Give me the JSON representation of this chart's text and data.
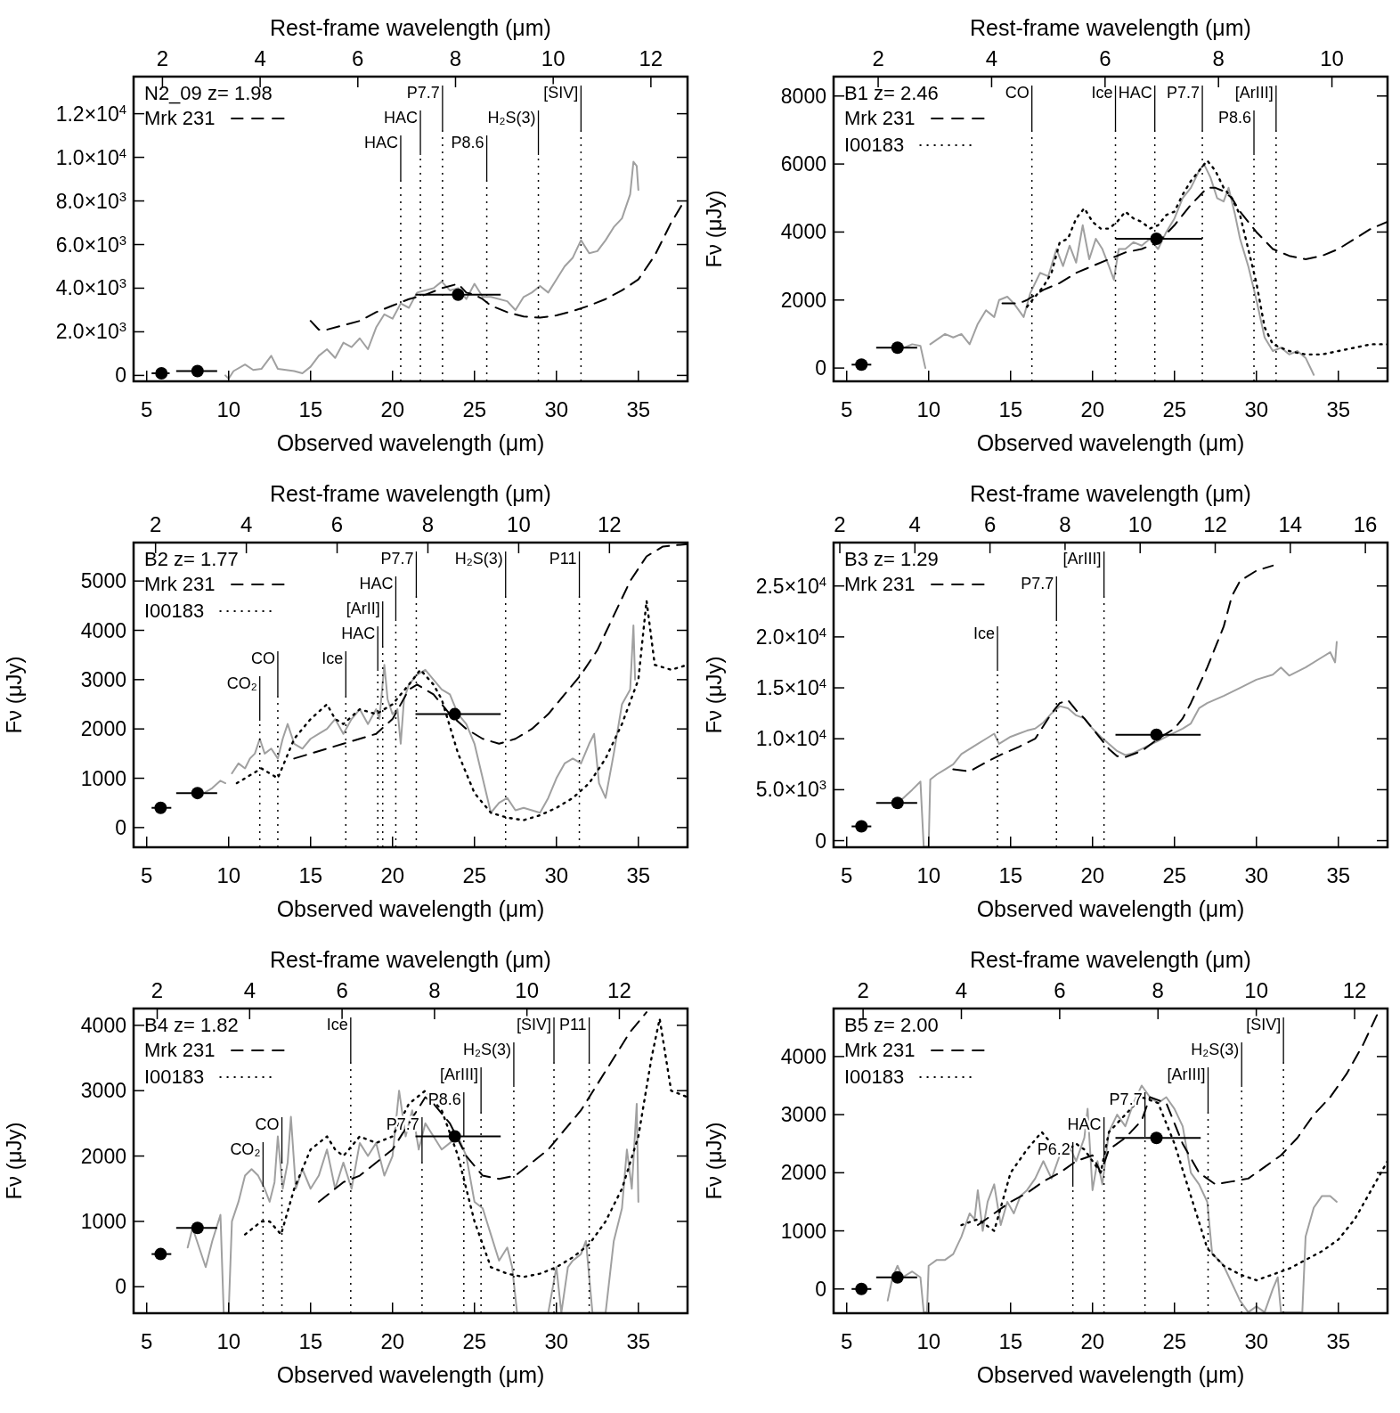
{
  "chart_data": [
    {
      "type": "line",
      "annotations": [
        "N2_09 z= 1.98"
      ],
      "xlabel": "Observed wavelength (μm)",
      "x2label": "Rest-frame wavelength (μm)",
      "xlim": [
        4.2,
        38
      ],
      "xticks": [
        5,
        10,
        15,
        20,
        25,
        30,
        35
      ],
      "x2lim": [
        1.409,
        12.75
      ],
      "x2ticks": [
        2,
        4,
        6,
        8,
        10,
        12
      ],
      "ylim": [
        -270,
        13700
      ],
      "yticks": [
        0,
        {
          "value": 2000,
          "label": "2.0×10$^{3}$"
        },
        {
          "value": 4000,
          "label": "4.0×10$^{3}$"
        },
        {
          "value": 6000,
          "label": "6.0×10$^{3}$"
        },
        {
          "value": 8000,
          "label": "8.0×10$^{3}$"
        },
        {
          "value": 10000,
          "label": "1.0×10$^{4}$"
        },
        {
          "value": 12000,
          "label": "1.2×10$^{4}$"
        }
      ],
      "legend": "top left",
      "ref_lines": [
        {
          "axis": "x",
          "value": 20.5,
          "label": "HAC",
          "line_style": "dotted"
        },
        {
          "axis": "x",
          "value": 21.7,
          "label": "HAC",
          "line_style": "dotted"
        },
        {
          "axis": "x",
          "value": 23.05,
          "label": "P7.7",
          "line_style": "dotted"
        },
        {
          "axis": "x",
          "value": 25.75,
          "label": "P8.6",
          "line_style": "dotted"
        },
        {
          "axis": "x",
          "value": 28.9,
          "label": "H₂S(3)",
          "line_style": "dotted"
        },
        {
          "axis": "x",
          "value": 31.5,
          "label": "[SIV]",
          "line_style": "dotted"
        }
      ],
      "series": [
        {
          "color": "#a0a0a0",
          "line_style": "solid",
          "x": [
            9.8,
            10,
            10.3,
            11,
            11.5,
            12,
            12.6,
            13,
            14,
            14.5,
            15,
            15.5,
            16,
            16.5,
            17,
            17.5,
            18,
            18.5,
            19,
            19.5,
            20,
            20.5,
            21,
            21.5,
            22,
            22.5,
            23,
            23.5,
            24,
            24.5,
            25,
            25.5,
            26,
            27,
            27.5,
            28,
            28.5,
            29,
            29.5,
            30,
            30.5,
            31,
            31.5,
            32,
            32.5,
            33,
            33.5,
            34,
            34.5,
            34.7,
            34.9,
            35
          ],
          "values": [
            0,
            -150,
            200,
            500,
            250,
            300,
            900,
            300,
            200,
            100,
            400,
            900,
            1200,
            800,
            1500,
            1300,
            1700,
            1200,
            2200,
            2800,
            2600,
            3300,
            3100,
            3800,
            3900,
            4000,
            4300,
            3900,
            4000,
            3500,
            4200,
            3600,
            3600,
            3400,
            3000,
            3600,
            3800,
            4100,
            3800,
            4400,
            5000,
            5400,
            6200,
            5600,
            5700,
            6200,
            6800,
            7200,
            8300,
            9800,
            9600,
            8500
          ]
        },
        {
          "name": "Mrk 231",
          "color": "#000000",
          "line_style": "dashed",
          "x": [
            15,
            15.5,
            16,
            17,
            18,
            19,
            20,
            21,
            22,
            23,
            24,
            24.5,
            25,
            25.5,
            26,
            27,
            28,
            29,
            30,
            31,
            32,
            33,
            34,
            35,
            36,
            37,
            37.8
          ],
          "values": [
            2500,
            2100,
            2100,
            2300,
            2500,
            2900,
            3200,
            3500,
            3700,
            4000,
            4200,
            3800,
            3700,
            3500,
            3200,
            2900,
            2700,
            2650,
            2750,
            2950,
            3200,
            3500,
            3900,
            4400,
            5500,
            7000,
            8000
          ]
        },
        {
          "type": "scatter",
          "color": "#000000",
          "marker": "circle",
          "x": [
            5.9,
            8.1,
            24
          ],
          "values": [
            100,
            200,
            3700
          ],
          "xerrors": [
            [
              5.3,
              6.4
            ],
            [
              6.8,
              9.3
            ],
            [
              21.4,
              26.6
            ]
          ]
        }
      ]
    },
    {
      "type": "line",
      "annotations": [
        "B1 z= 2.46"
      ],
      "xlabel": "Observed wavelength (μm)",
      "x2label": "Rest-frame wavelength (μm)",
      "ylabel": "Fν (μJy)",
      "xlim": [
        4.2,
        38
      ],
      "xticks": [
        5,
        10,
        15,
        20,
        25,
        30,
        35
      ],
      "x2lim": [
        1.214,
        10.98
      ],
      "x2ticks": [
        2,
        4,
        6,
        8,
        10
      ],
      "ylim": [
        -390,
        8570
      ],
      "yticks": [
        0,
        2000,
        4000,
        6000,
        8000
      ],
      "legend": "top left",
      "ref_lines": [
        {
          "axis": "x",
          "value": 16.3,
          "label": "CO",
          "line_style": "dotted"
        },
        {
          "axis": "x",
          "value": 21.4,
          "label": "Ice",
          "line_style": "dotted"
        },
        {
          "axis": "x",
          "value": 23.8,
          "label": "HAC",
          "line_style": "dotted"
        },
        {
          "axis": "x",
          "value": 26.7,
          "label": "P7.7",
          "line_style": "dotted"
        },
        {
          "axis": "x",
          "value": 29.85,
          "label": "P8.6",
          "line_style": "dotted"
        },
        {
          "axis": "x",
          "value": 31.2,
          "label": "[ArIII]",
          "line_style": "dotted"
        }
      ],
      "series": [
        {
          "color": "#a0a0a0",
          "line_style": "solid",
          "x": [
            8,
            9,
            9.5,
            9.8,
            10,
            10.1,
            11,
            11.5,
            12,
            12.5,
            13,
            13.5,
            14,
            14.3,
            14.8,
            15.2,
            15.8,
            16.2,
            16.8,
            17.3,
            17.8,
            18.2,
            18.6,
            19,
            19.4,
            19.8,
            20.2,
            20.6,
            21,
            21.3,
            21.6,
            22,
            22.5,
            23,
            23.5,
            24,
            24.5,
            25,
            25.5,
            26,
            26.5,
            26.8,
            27.2,
            27.6,
            28,
            28.3,
            28.7,
            29,
            29.5,
            30,
            30.5,
            31,
            31.5,
            32,
            32.5,
            33,
            33.5
          ],
          "values": [
            500,
            700,
            650,
            0,
            null,
            700,
            1000,
            900,
            1000,
            700,
            1300,
            1700,
            1500,
            2000,
            2100,
            1900,
            1500,
            2200,
            2800,
            2700,
            3500,
            3000,
            3600,
            3100,
            4200,
            3200,
            3800,
            3500,
            3000,
            2600,
            3500,
            3500,
            3700,
            3600,
            3800,
            3500,
            4000,
            4400,
            5000,
            5300,
            5800,
            6000,
            5600,
            5000,
            4900,
            5300,
            4500,
            3800,
            3000,
            2000,
            900,
            500,
            600,
            400,
            500,
            300,
            -200
          ]
        },
        {
          "name": "Mrk 231",
          "color": "#000000",
          "line_style": "dashed",
          "x": [
            14.5,
            15.5,
            16,
            17,
            18,
            19,
            20,
            21,
            22,
            23,
            24,
            25,
            26,
            27,
            27.5,
            28,
            28.5,
            29,
            30,
            31,
            32,
            33,
            34,
            35,
            36,
            37,
            38
          ],
          "values": [
            1900,
            1900,
            2000,
            2300,
            2500,
            2800,
            3000,
            3200,
            3400,
            3500,
            3700,
            4200,
            4800,
            5300,
            5300,
            5200,
            5000,
            4600,
            4000,
            3500,
            3300,
            3200,
            3300,
            3500,
            3800,
            4100,
            4300
          ]
        },
        {
          "name": "I00183",
          "color": "#000000",
          "line_style": "dotted",
          "x": [
            16,
            17,
            17.5,
            18,
            18.5,
            19,
            19.5,
            20,
            20.5,
            21,
            21.5,
            22,
            22.5,
            23,
            23.5,
            24,
            24.5,
            25,
            25.5,
            26,
            26.5,
            27,
            27.5,
            28,
            28.5,
            29,
            29.5,
            30,
            30.5,
            31,
            32,
            33,
            34,
            35,
            36,
            37,
            38
          ],
          "values": [
            1800,
            2400,
            2800,
            3700,
            3800,
            4400,
            4700,
            4300,
            4100,
            4100,
            4300,
            4600,
            4400,
            4300,
            4100,
            4200,
            4500,
            4600,
            5100,
            5500,
            5800,
            6100,
            5800,
            5300,
            5000,
            4500,
            3500,
            2500,
            1200,
            700,
            500,
            400,
            400,
            500,
            600,
            700,
            700
          ]
        },
        {
          "type": "scatter",
          "color": "#000000",
          "marker": "circle",
          "x": [
            5.9,
            8.1,
            23.9
          ],
          "values": [
            100,
            600,
            3800
          ],
          "xerrors": [
            [
              5.3,
              6.5
            ],
            [
              6.8,
              9.3
            ],
            [
              21.4,
              26.7
            ]
          ]
        }
      ]
    },
    {
      "type": "line",
      "annotations": [
        "B2 z= 1.77"
      ],
      "xlabel": "Observed wavelength (μm)",
      "x2label": "Rest-frame wavelength (μm)",
      "ylabel": "Fν (μJy)",
      "xlim": [
        4.2,
        38
      ],
      "xticks": [
        5,
        10,
        15,
        20,
        25,
        30,
        35
      ],
      "x2lim": [
        1.516,
        13.72
      ],
      "x2ticks": [
        2,
        4,
        6,
        8,
        10,
        12
      ],
      "ylim": [
        -400,
        5780
      ],
      "yticks": [
        0,
        1000,
        2000,
        3000,
        4000,
        5000
      ],
      "legend": "top left",
      "ref_lines": [
        {
          "axis": "x",
          "value": 11.9,
          "label": "CO₂",
          "line_style": "dotted"
        },
        {
          "axis": "x",
          "value": 13.0,
          "label": "CO",
          "line_style": "dotted"
        },
        {
          "axis": "x",
          "value": 17.15,
          "label": "Ice",
          "line_style": "dotted"
        },
        {
          "axis": "x",
          "value": 19.1,
          "label": "HAC",
          "line_style": "dotted"
        },
        {
          "axis": "x",
          "value": 19.4,
          "label": "[ArII]",
          "line_style": "dotted"
        },
        {
          "axis": "x",
          "value": 20.2,
          "label": "HAC",
          "line_style": "dotted"
        },
        {
          "axis": "x",
          "value": 21.45,
          "label": "P7.7",
          "line_style": "dotted"
        },
        {
          "axis": "x",
          "value": 26.9,
          "label": "H₂S(3)",
          "line_style": "dotted"
        },
        {
          "axis": "x",
          "value": 31.4,
          "label": "P11",
          "line_style": "dotted"
        }
      ],
      "series": [
        {
          "color": "#a0a0a0",
          "line_style": "solid",
          "x": [
            8.5,
            9,
            9.5,
            9.8,
            9.9,
            10.1,
            10.2,
            10.6,
            11,
            11.3,
            11.6,
            11.9,
            12.2,
            12.6,
            13,
            13.3,
            13.6,
            14,
            14.5,
            15,
            15.5,
            16,
            16.5,
            17,
            17.5,
            18,
            18.5,
            19,
            19.2,
            19.5,
            19.7,
            20,
            20.3,
            20.5,
            20.7,
            21,
            21.5,
            22,
            22.5,
            23,
            23.5,
            24,
            24.5,
            25,
            25.5,
            26,
            26.5,
            27,
            27.5,
            28,
            29,
            29.5,
            30,
            30.5,
            31,
            31.5,
            32,
            32.3,
            32.6,
            33,
            33.5,
            34,
            34.5,
            34.7,
            34.8
          ],
          "values": [
            700,
            800,
            950,
            900,
            null,
            null,
            1100,
            1300,
            1200,
            1400,
            1500,
            1800,
            1500,
            1600,
            1400,
            1800,
            2100,
            1700,
            1600,
            1800,
            1900,
            2000,
            2200,
            1900,
            2200,
            2400,
            2100,
            2400,
            2200,
            3300,
            2600,
            2300,
            2400,
            1700,
            2600,
            2900,
            3100,
            3200,
            3000,
            2800,
            2700,
            2300,
            2100,
            1700,
            1000,
            300,
            500,
            600,
            350,
            400,
            300,
            600,
            1000,
            1300,
            1400,
            1300,
            1700,
            1900,
            900,
            600,
            1500,
            2500,
            2800,
            4100,
            3000
          ]
        },
        {
          "name": "Mrk 231",
          "color": "#000000",
          "line_style": "dashed",
          "x": [
            14,
            15,
            16,
            17,
            18,
            19,
            20,
            21,
            21.5,
            22.5,
            23.5,
            24.5,
            25.5,
            26.5,
            27.5,
            28.5,
            29.5,
            30.5,
            31.5,
            32.5,
            33.5,
            34.5,
            35.5,
            36.5,
            38
          ],
          "values": [
            1400,
            1500,
            1600,
            1700,
            1800,
            1900,
            2200,
            2800,
            2900,
            2700,
            2300,
            2000,
            1800,
            1700,
            1800,
            2000,
            2300,
            2700,
            3100,
            3600,
            4300,
            5000,
            5500,
            5700,
            5750
          ]
        },
        {
          "name": "I00183",
          "color": "#000000",
          "line_style": "dotted",
          "x": [
            10.5,
            11.5,
            12,
            13,
            14,
            15,
            16,
            16.5,
            17,
            18,
            19,
            20,
            21,
            21.7,
            22.5,
            23,
            24,
            25,
            26,
            27,
            28,
            29,
            30,
            31,
            32,
            33,
            34,
            35,
            35.5,
            36,
            37,
            38
          ],
          "values": [
            900,
            1100,
            1200,
            1000,
            1800,
            2200,
            2500,
            2200,
            2100,
            2400,
            2300,
            2500,
            2900,
            3200,
            2900,
            2600,
            1500,
            700,
            300,
            200,
            150,
            250,
            400,
            600,
            900,
            1400,
            2100,
            3000,
            4600,
            3300,
            3200,
            3300
          ]
        },
        {
          "type": "scatter",
          "color": "#000000",
          "marker": "circle",
          "x": [
            5.85,
            8.1,
            23.8
          ],
          "values": [
            400,
            700,
            2300
          ],
          "xerrors": [
            [
              5.3,
              6.5
            ],
            [
              6.8,
              9.3
            ],
            [
              21.4,
              26.6
            ]
          ]
        }
      ]
    },
    {
      "type": "line",
      "annotations": [
        "B3 z= 1.29"
      ],
      "xlabel": "Observed wavelength (μm)",
      "x2label": "Rest-frame wavelength (μm)",
      "ylabel": "Fν (μJy)",
      "xlim": [
        4.2,
        38
      ],
      "xticks": [
        5,
        10,
        15,
        20,
        25,
        30,
        35
      ],
      "x2lim": [
        1.834,
        16.59
      ],
      "x2ticks": [
        2,
        4,
        6,
        8,
        10,
        12,
        14,
        16
      ],
      "ylim": [
        -650,
        29260
      ],
      "yticks": [
        0,
        {
          "value": 5000,
          "label": "5.0×10$^{3}$"
        },
        {
          "value": 10000,
          "label": "1.0×10$^{4}$"
        },
        {
          "value": 15000,
          "label": "1.5×10$^{4}$"
        },
        {
          "value": 20000,
          "label": "2.0×10$^{4}$"
        },
        {
          "value": 25000,
          "label": "2.5×10$^{4}$"
        }
      ],
      "legend": "top left",
      "ref_lines": [
        {
          "axis": "x",
          "value": 14.2,
          "label": "Ice",
          "line_style": "dotted"
        },
        {
          "axis": "x",
          "value": 17.8,
          "label": "P7.7",
          "line_style": "dotted"
        },
        {
          "axis": "x",
          "value": 20.7,
          "label": "[ArIII]",
          "line_style": "dotted"
        }
      ],
      "series": [
        {
          "color": "#a0a0a0",
          "line_style": "solid",
          "x": [
            8,
            9,
            9.5,
            9.7,
            10,
            10.1,
            10.5,
            11,
            11.5,
            12,
            12.5,
            13,
            13.5,
            14,
            14.3,
            15,
            15.5,
            16,
            16.5,
            17,
            17.5,
            18,
            18.5,
            19,
            19.5,
            20,
            20.5,
            21,
            21.5,
            22,
            22.5,
            23,
            24,
            25,
            25.5,
            26,
            26.5,
            27,
            28,
            29,
            30,
            31,
            31.5,
            32,
            33,
            34,
            34.5,
            34.8,
            34.9
          ],
          "values": [
            3500,
            5000,
            5800,
            -600,
            -600,
            6000,
            6500,
            7000,
            7500,
            8500,
            9000,
            9500,
            10000,
            10500,
            9500,
            10200,
            10500,
            10800,
            11000,
            11600,
            12500,
            13200,
            13000,
            12300,
            12000,
            11000,
            10200,
            9500,
            8800,
            8400,
            8600,
            9000,
            9800,
            10600,
            11000,
            11500,
            13000,
            13500,
            14200,
            15000,
            15800,
            16300,
            17000,
            16200,
            17000,
            18000,
            18500,
            17500,
            19500
          ]
        },
        {
          "name": "Mrk 231",
          "color": "#000000",
          "line_style": "dashed",
          "x": [
            11.5,
            12.5,
            13.5,
            14.5,
            15.5,
            16.5,
            17.5,
            18,
            18.5,
            19,
            19.5,
            20,
            21,
            21.5,
            22,
            23,
            24,
            25,
            25.5,
            26,
            27,
            28,
            28.5,
            29,
            30,
            31
          ],
          "values": [
            7000,
            6800,
            7700,
            8500,
            9200,
            10000,
            12500,
            13500,
            13800,
            12800,
            12000,
            11000,
            9000,
            8300,
            8200,
            8800,
            10000,
            11000,
            12000,
            13500,
            17000,
            21000,
            24000,
            25500,
            26500,
            27000
          ]
        },
        {
          "type": "scatter",
          "color": "#000000",
          "marker": "circle",
          "x": [
            5.9,
            8.1,
            23.9
          ],
          "values": [
            1400,
            3700,
            10400
          ],
          "xerrors": [
            [
              5.3,
              6.5
            ],
            [
              6.8,
              9.3
            ],
            [
              21.4,
              26.6
            ]
          ]
        }
      ]
    },
    {
      "type": "line",
      "annotations": [
        "B4 z= 1.82"
      ],
      "xlabel": "Observed wavelength (μm)",
      "x2label": "Rest-frame wavelength (μm)",
      "ylabel": "Fν (μJy)",
      "xlim": [
        4.2,
        38
      ],
      "xticks": [
        5,
        10,
        15,
        20,
        25,
        30,
        35
      ],
      "x2lim": [
        1.489,
        13.475
      ],
      "x2ticks": [
        2,
        4,
        6,
        8,
        10,
        12
      ],
      "ylim": [
        -405,
        4257
      ],
      "yticks": [
        0,
        1000,
        2000,
        3000,
        4000
      ],
      "legend": "top left",
      "ref_lines": [
        {
          "axis": "x",
          "value": 12.1,
          "label": "CO₂",
          "line_style": "dotted"
        },
        {
          "axis": "x",
          "value": 13.25,
          "label": "CO",
          "line_style": "dotted"
        },
        {
          "axis": "x",
          "value": 17.45,
          "label": "Ice",
          "line_style": "dotted"
        },
        {
          "axis": "x",
          "value": 21.8,
          "label": "P7.7",
          "line_style": "dotted"
        },
        {
          "axis": "x",
          "value": 24.35,
          "label": "P8.6",
          "line_style": "dotted"
        },
        {
          "axis": "x",
          "value": 25.4,
          "label": "[ArIII]",
          "line_style": "dotted"
        },
        {
          "axis": "x",
          "value": 27.4,
          "label": "H₂S(3)",
          "line_style": "dotted"
        },
        {
          "axis": "x",
          "value": 29.85,
          "label": "[SIV]",
          "line_style": "dotted"
        },
        {
          "axis": "x",
          "value": 32.0,
          "label": "P11",
          "line_style": "dotted"
        }
      ],
      "series": [
        {
          "color": "#a0a0a0",
          "line_style": "solid",
          "x": [
            7.5,
            7.8,
            8.2,
            8.6,
            9,
            9.5,
            9.7,
            10,
            10.2,
            10.6,
            11,
            11.4,
            11.8,
            12.2,
            12.5,
            12.8,
            13,
            13.3,
            13.6,
            13.8,
            14.1,
            14.5,
            15,
            15.5,
            16,
            16.5,
            17,
            17.5,
            18,
            18.5,
            19,
            19.5,
            20,
            20.4,
            20.8,
            21.2,
            21.6,
            22,
            22.5,
            23,
            23.5,
            24,
            24.5,
            25,
            25.5,
            26,
            26.5,
            27,
            27.3,
            27.6,
            29.5,
            30,
            30.3,
            30.7,
            31,
            31.5,
            31.8,
            32.2,
            33,
            33.5,
            34,
            34.3,
            34.6,
            34.9,
            35
          ],
          "values": [
            600,
            900,
            600,
            300,
            700,
            1100,
            -400,
            -400,
            1000,
            1300,
            1700,
            1800,
            1700,
            1500,
            1300,
            1600,
            2300,
            1500,
            1900,
            2600,
            1500,
            1800,
            1500,
            1700,
            2100,
            1500,
            1900,
            1500,
            2200,
            2000,
            2200,
            1700,
            2000,
            3000,
            2300,
            2700,
            2100,
            2500,
            2300,
            2100,
            2200,
            2300,
            2000,
            1300,
            1200,
            800,
            400,
            600,
            300,
            -400,
            -400,
            300,
            -400,
            300,
            400,
            500,
            700,
            -400,
            -400,
            700,
            1200,
            2100,
            1500,
            2800,
            1300
          ]
        },
        {
          "name": "Mrk 231",
          "color": "#000000",
          "line_style": "dashed",
          "x": [
            15.5,
            17,
            18,
            19,
            20,
            21,
            22,
            22.5,
            23.5,
            24.5,
            25.5,
            26.5,
            27.5,
            28.5,
            29.5,
            30.5,
            31.5,
            32.5,
            33.5,
            34.5,
            35.5
          ],
          "values": [
            1300,
            1600,
            1700,
            1900,
            2100,
            2500,
            2900,
            2800,
            2500,
            2000,
            1700,
            1650,
            1700,
            1900,
            2100,
            2400,
            2700,
            3100,
            3500,
            3900,
            4200
          ]
        },
        {
          "name": "I00183",
          "color": "#000000",
          "line_style": "dotted",
          "x": [
            11,
            12,
            12.5,
            13.2,
            14,
            15,
            16,
            16.5,
            17,
            18,
            19,
            20,
            21,
            22,
            23,
            24,
            25,
            26,
            27,
            28,
            29,
            30,
            31,
            32,
            33,
            34,
            35,
            35.8,
            36.3,
            37,
            38
          ],
          "values": [
            800,
            1000,
            1000,
            800,
            1500,
            2100,
            2300,
            2100,
            2000,
            2300,
            2200,
            2300,
            2800,
            3000,
            2700,
            2000,
            1000,
            300,
            200,
            150,
            200,
            300,
            450,
            650,
            1000,
            1500,
            2300,
            3500,
            4100,
            3000,
            2900
          ]
        },
        {
          "type": "scatter",
          "color": "#000000",
          "marker": "circle",
          "x": [
            5.85,
            8.1,
            23.8
          ],
          "values": [
            500,
            900,
            2300
          ],
          "xerrors": [
            [
              5.3,
              6.5
            ],
            [
              6.8,
              9.3
            ],
            [
              21.4,
              26.6
            ]
          ]
        }
      ]
    },
    {
      "type": "line",
      "annotations": [
        "B5 z= 2.00"
      ],
      "xlabel": "Observed wavelength (μm)",
      "x2label": "Rest-frame wavelength (μm)",
      "ylabel": "Fν (μJy)",
      "xlim": [
        4.2,
        38
      ],
      "xticks": [
        5,
        10,
        15,
        20,
        25,
        30,
        35
      ],
      "x2lim": [
        1.4,
        12.67
      ],
      "x2ticks": [
        2,
        4,
        6,
        8,
        10,
        12
      ],
      "ylim": [
        -417,
        4826
      ],
      "yticks": [
        0,
        1000,
        2000,
        3000,
        4000
      ],
      "legend": "top left",
      "ref_lines": [
        {
          "axis": "x",
          "value": 18.8,
          "label": "P6.2",
          "line_style": "dotted"
        },
        {
          "axis": "x",
          "value": 20.7,
          "label": "HAC",
          "line_style": "dotted"
        },
        {
          "axis": "x",
          "value": 23.2,
          "label": "P7.7",
          "line_style": "dotted"
        },
        {
          "axis": "x",
          "value": 27.05,
          "label": "[ArIII]",
          "line_style": "dotted"
        },
        {
          "axis": "x",
          "value": 29.1,
          "label": "H₂S(3)",
          "line_style": "dotted"
        },
        {
          "axis": "x",
          "value": 31.65,
          "label": "[SIV]",
          "line_style": "dotted"
        }
      ],
      "series": [
        {
          "color": "#a0a0a0",
          "line_style": "solid",
          "x": [
            7.5,
            7.8,
            8.1,
            8.4,
            9,
            9.5,
            9.7,
            9.9,
            10,
            10.5,
            11,
            11.5,
            12,
            12.5,
            12.8,
            13,
            13.3,
            13.6,
            14,
            14.4,
            14.8,
            15.2,
            15.6,
            16,
            16.5,
            17,
            17.5,
            18,
            18.5,
            19,
            19.5,
            19.7,
            20,
            20.3,
            20.6,
            21,
            21.5,
            22,
            22.5,
            23,
            23.5,
            24,
            24.5,
            25,
            25.5,
            26,
            26.5,
            27,
            27.3,
            27.7,
            28,
            28.5,
            29,
            29.5,
            30,
            30.5,
            31,
            31.3,
            31.5,
            32.8,
            33,
            33.5,
            34,
            34.5,
            34.9
          ],
          "values": [
            -200,
            200,
            400,
            200,
            300,
            200,
            -400,
            -400,
            400,
            500,
            500,
            600,
            900,
            1300,
            1200,
            1700,
            1000,
            1500,
            1800,
            1100,
            1500,
            1300,
            1600,
            1700,
            1900,
            2200,
            1900,
            2300,
            2500,
            2200,
            2600,
            3100,
            1700,
            2200,
            1800,
            2700,
            3000,
            2800,
            3200,
            3500,
            3300,
            3200,
            3300,
            3100,
            2800,
            2000,
            1800,
            1500,
            600,
            500,
            400,
            100,
            -200,
            -400,
            -300,
            -400,
            0,
            200,
            -400,
            -400,
            900,
            1400,
            1600,
            1600,
            1500
          ]
        },
        {
          "name": "Mrk 231",
          "color": "#000000",
          "line_style": "dashed",
          "x": [
            13,
            14,
            15,
            16,
            17,
            18,
            19,
            20,
            20.5,
            21,
            22,
            23,
            23.5,
            24.5,
            25.5,
            26.5,
            27.5,
            28.5,
            29.5,
            30.5,
            31.5,
            32.5,
            33.5,
            34.5,
            35.5,
            36.5,
            37.5
          ],
          "values": [
            1100,
            1300,
            1500,
            1650,
            1850,
            2000,
            2200,
            2300,
            2000,
            2400,
            2600,
            2900,
            3300,
            3200,
            2500,
            2000,
            1800,
            1850,
            1900,
            2100,
            2300,
            2600,
            3000,
            3300,
            3700,
            4200,
            4800
          ]
        },
        {
          "name": "I00183",
          "color": "#000000",
          "line_style": "dotted",
          "x": [
            12,
            13,
            14,
            15,
            16,
            16.9,
            17.5,
            18,
            18.5,
            19,
            19.5,
            20,
            20.5,
            21,
            22,
            23,
            24,
            25,
            26,
            27,
            28,
            29,
            30,
            31,
            32,
            33,
            34,
            35,
            36,
            37,
            38
          ],
          "values": [
            1100,
            1200,
            1000,
            2000,
            2400,
            2700,
            2500,
            2300,
            2400,
            2500,
            2400,
            2200,
            2000,
            2700,
            3000,
            3300,
            3200,
            2500,
            1600,
            700,
            400,
            250,
            150,
            250,
            350,
            500,
            650,
            850,
            1200,
            1700,
            2200
          ]
        },
        {
          "type": "scatter",
          "color": "#000000",
          "marker": "circle",
          "x": [
            5.9,
            8.1,
            23.9
          ],
          "values": [
            0,
            200,
            2600
          ],
          "xerrors": [
            [
              5.3,
              6.5
            ],
            [
              6.8,
              9.3
            ],
            [
              21.4,
              26.6
            ]
          ]
        }
      ]
    }
  ]
}
